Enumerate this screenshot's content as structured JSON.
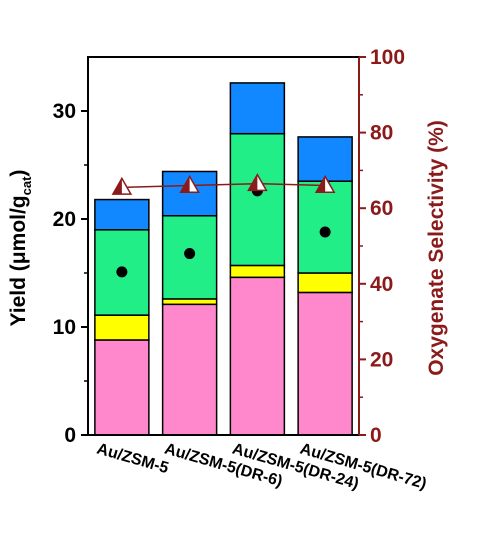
{
  "chart_data": {
    "type": "bar",
    "stacked": true,
    "categories": [
      "Au/ZSM-5",
      "Au/ZSM-5(DR-6)",
      "Au/ZSM-5(DR-24)",
      "Au/ZSM-5(DR-72)"
    ],
    "segment_colors": [
      "#ff88cc",
      "#ffff00",
      "#22ee88",
      "#1188ff"
    ],
    "stack_segments": [
      [
        8.8,
        2.3,
        7.9,
        2.8
      ],
      [
        12.1,
        0.5,
        7.7,
        4.1
      ],
      [
        14.6,
        1.1,
        12.2,
        4.7
      ],
      [
        13.2,
        1.8,
        8.5,
        4.1
      ]
    ],
    "totals": [
      21.8,
      24.4,
      32.6,
      27.6
    ],
    "dots_yield": [
      15.1,
      16.8,
      22.6,
      18.8
    ],
    "selectivity": [
      65.5,
      66.0,
      66.5,
      66.0
    ],
    "left_axis": {
      "label_main": "Yield (μmol/g",
      "label_sub": "cat",
      "label_close": ")",
      "ylim": [
        0,
        35
      ],
      "ticks": [
        "0",
        "10",
        "20",
        "30"
      ],
      "tick_values": [
        0,
        10,
        20,
        30
      ],
      "minor": [
        5,
        15,
        25
      ]
    },
    "right_axis": {
      "label": "Oxygenate Selectivity (%)",
      "ylim": [
        0,
        100
      ],
      "ticks": [
        "0",
        "20",
        "40",
        "60",
        "80",
        "100"
      ],
      "tick_values": [
        0,
        20,
        40,
        60,
        80,
        100
      ],
      "color": "#8b1a1a"
    },
    "marker_color": "#8b1a1a",
    "dot_color": "#000000"
  }
}
